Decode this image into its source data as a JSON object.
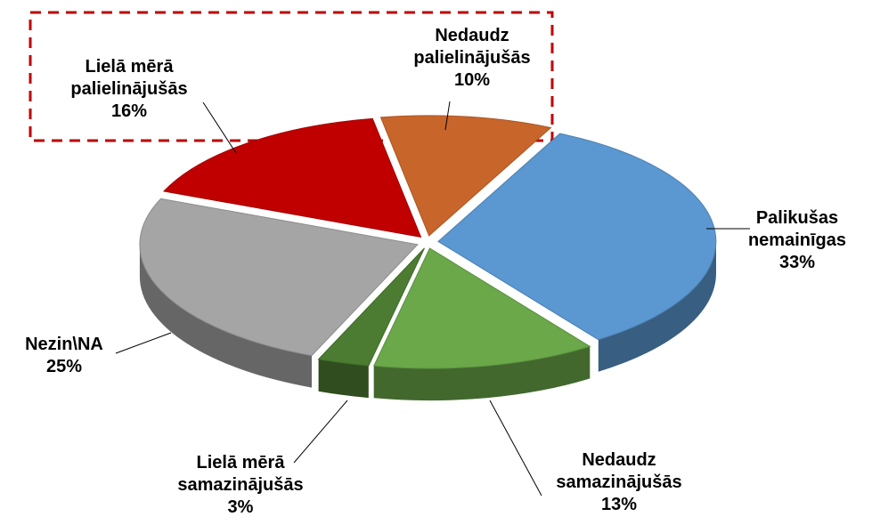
{
  "chart_data": {
    "type": "pie",
    "categories": [
      "Nedaudz palielinājušās",
      "Palikušas nemainīgas",
      "Nedaudz samazinājušās",
      "Lielā mērā samazinājušās",
      "Nezin\\NA",
      "Lielā mērā palielinājušās"
    ],
    "values": [
      10,
      33,
      13,
      3,
      25,
      16
    ],
    "value_labels": [
      "10%",
      "33%",
      "13%",
      "3%",
      "25%",
      "16%"
    ],
    "colors": [
      "#c8652b",
      "#5b97d0",
      "#6aa84a",
      "#4b7c31",
      "#a5a5a5",
      "#c00000"
    ]
  }
}
